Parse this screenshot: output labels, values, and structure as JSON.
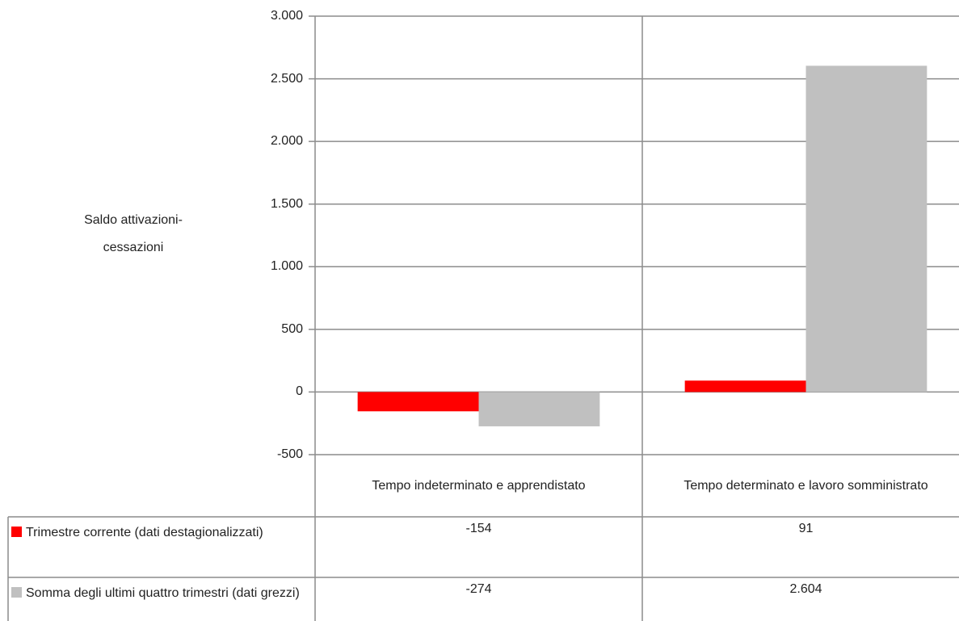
{
  "chart_data": {
    "type": "bar",
    "y_label": "Saldo attivazioni-cessazioni",
    "categories": [
      "Tempo indeterminato e apprendistato",
      "Tempo determinato e lavoro somministrato"
    ],
    "series": [
      {
        "name": "Trimestre corrente (dati destagionalizzati)",
        "color": "#ff0000",
        "values": [
          -154,
          91
        ]
      },
      {
        "name": "Somma degli ultimi quattro trimestri (dati grezzi)",
        "color": "#c0c0c0",
        "values": [
          -274,
          2604
        ],
        "value_labels": [
          "-274",
          "2.604"
        ]
      }
    ],
    "ylim": [
      -500,
      3000
    ],
    "yticks": [
      -500,
      0,
      500,
      {
        "value": 1000,
        "label": "1.000"
      },
      {
        "value": 1500,
        "label": "1.500"
      },
      {
        "value": 2000,
        "label": "2.000"
      },
      {
        "value": 2500,
        "label": "2.500"
      },
      {
        "value": 3000,
        "label": "3.000"
      }
    ],
    "grid": true
  }
}
